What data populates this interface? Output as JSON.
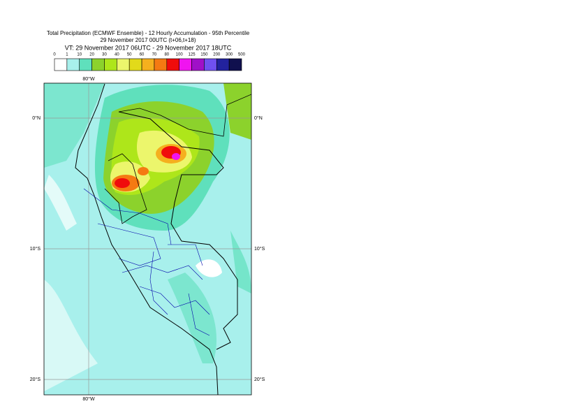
{
  "header": {
    "title": "Total Precipitation (ECMWF Ensemble) - 12 Hourly Accumulation - 95th Percentile",
    "run": "29 November 2017 00UTC (t+06,t+18)",
    "valid": "VT: 29 November 2017 06UTC - 29 November 2017 18UTC"
  },
  "colorbar": {
    "labels": [
      "0",
      "1",
      "10",
      "20",
      "30",
      "40",
      "50",
      "60",
      "70",
      "80",
      "100",
      "125",
      "150",
      "200",
      "300",
      "500"
    ],
    "colors": [
      "#ffffff",
      "#a8f0ec",
      "#5fe0bc",
      "#8cd22c",
      "#aee61a",
      "#ecf66c",
      "#e2da1a",
      "#f5b01e",
      "#f57a12",
      "#f00c0c",
      "#f014f0",
      "#a010c8",
      "#7050f0",
      "#22229e",
      "#10104e"
    ]
  },
  "map": {
    "lon_labels": [
      "80°W"
    ],
    "lat_labels": [
      "0°N",
      "10°S",
      "20°S"
    ]
  }
}
